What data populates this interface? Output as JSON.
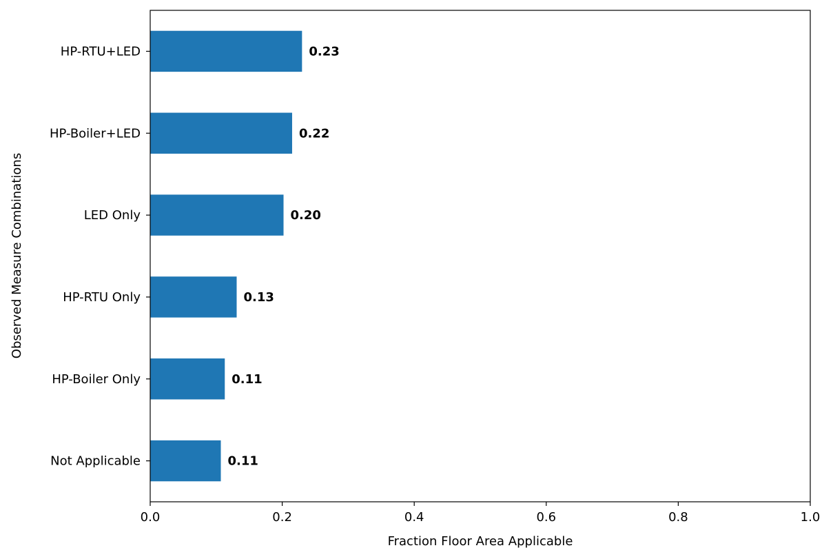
{
  "chart_data": {
    "type": "bar",
    "orientation": "horizontal",
    "categories": [
      "HP-RTU+LED",
      "HP-Boiler+LED",
      "LED Only",
      "HP-RTU Only",
      "HP-Boiler Only",
      "Not Applicable"
    ],
    "values": [
      0.23,
      0.215,
      0.202,
      0.131,
      0.113,
      0.107
    ],
    "value_labels": [
      "0.23",
      "0.22",
      "0.20",
      "0.13",
      "0.11",
      "0.11"
    ],
    "title": "",
    "xlabel": "Fraction Floor Area Applicable",
    "ylabel": "Observed Measure Combinations",
    "xlim": [
      0,
      1
    ],
    "xticks": [
      0.0,
      0.2,
      0.4,
      0.6,
      0.8,
      1.0
    ],
    "xtick_labels": [
      "0.0",
      "0.2",
      "0.4",
      "0.6",
      "0.8",
      "1.0"
    ],
    "grid": false,
    "legend": "none",
    "bar_color": "#1f77b4"
  }
}
